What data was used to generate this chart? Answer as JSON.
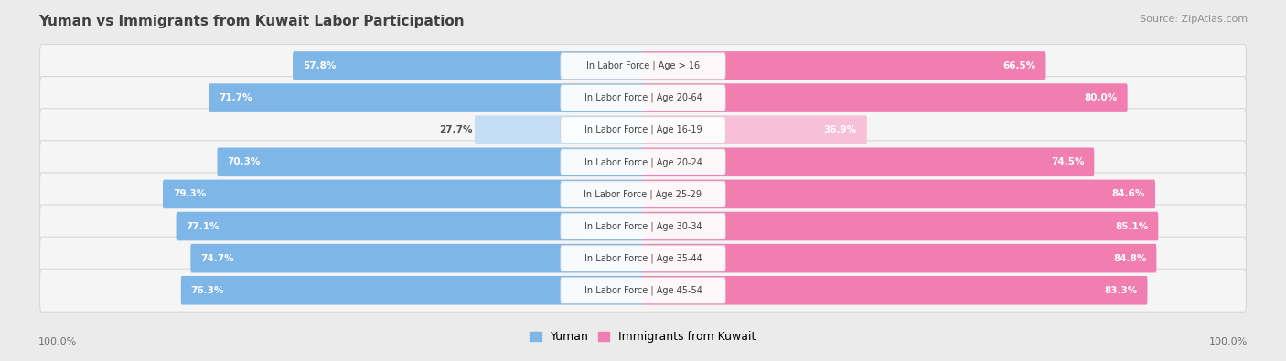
{
  "title": "Yuman vs Immigrants from Kuwait Labor Participation",
  "source": "Source: ZipAtlas.com",
  "categories": [
    "In Labor Force | Age > 16",
    "In Labor Force | Age 20-64",
    "In Labor Force | Age 16-19",
    "In Labor Force | Age 20-24",
    "In Labor Force | Age 25-29",
    "In Labor Force | Age 30-34",
    "In Labor Force | Age 35-44",
    "In Labor Force | Age 45-54"
  ],
  "yuman_values": [
    57.8,
    71.7,
    27.7,
    70.3,
    79.3,
    77.1,
    74.7,
    76.3
  ],
  "kuwait_values": [
    66.5,
    80.0,
    36.9,
    74.5,
    84.6,
    85.1,
    84.8,
    83.3
  ],
  "yuman_color": "#7EB6E8",
  "yuman_color_light": "#C5DEF5",
  "kuwait_color": "#F07EB0",
  "kuwait_color_light": "#F7C0D8",
  "bg_color": "#EBEBEB",
  "row_bg_color": "#F5F5F5",
  "row_border_color": "#D8D8D8",
  "title_color": "#404040",
  "source_color": "#909090",
  "legend_yuman": "Yuman",
  "legend_kuwait": "Immigrants from Kuwait",
  "axis_label": "100.0%",
  "max_value": 100.0
}
